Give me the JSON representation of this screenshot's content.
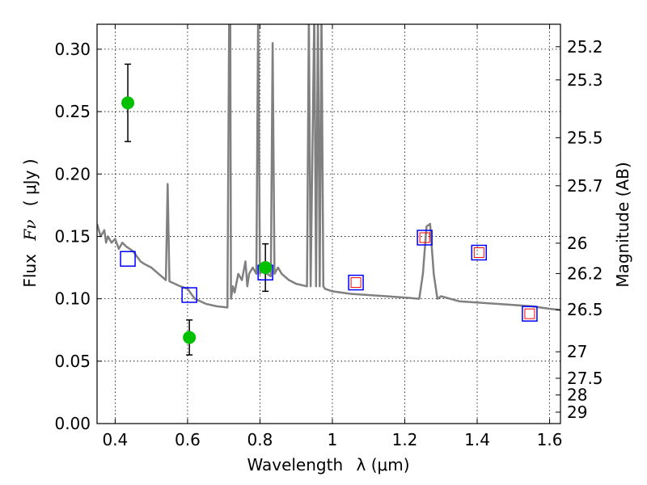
{
  "chart_data": {
    "type": "scatter",
    "x_axis": {
      "label": "Wavelength",
      "label_symbol": "λ (μm)",
      "lim": [
        0.35,
        1.63
      ],
      "ticks": [
        0.4,
        0.6,
        0.8,
        1.0,
        1.2,
        1.4,
        1.6
      ],
      "tick_labels": [
        "0.4",
        "0.6",
        "0.8",
        "1",
        "1.2",
        "1.4",
        "1.6"
      ]
    },
    "y_axis": {
      "label": "Flux",
      "label_symbol": "Fν",
      "label_unit": "( μJy )",
      "lim": [
        0.0,
        0.32
      ],
      "ticks": [
        0.0,
        0.05,
        0.1,
        0.15,
        0.2,
        0.25,
        0.3
      ],
      "tick_labels": [
        "0.00",
        "0.05",
        "0.10",
        "0.15",
        "0.20",
        "0.25",
        "0.30"
      ]
    },
    "y2_axis": {
      "label": "Magnitude (AB)",
      "ticks": [
        25.2,
        25.3,
        25.5,
        25.7,
        26,
        26.2,
        26.5,
        27,
        27.5,
        28,
        29
      ],
      "tick_labels": [
        "25.2",
        "25.3",
        "25.5",
        "25.7",
        "26",
        "26.2",
        "26.5",
        "27",
        "27.5",
        "28",
        "29"
      ]
    },
    "grid": true,
    "series": [
      {
        "kind": "line",
        "color": "#808080",
        "x": [
          0.35,
          0.36,
          0.37,
          0.375,
          0.38,
          0.39,
          0.4,
          0.41,
          0.42,
          0.43,
          0.44,
          0.45,
          0.46,
          0.47,
          0.48,
          0.5,
          0.52,
          0.54,
          0.545,
          0.55,
          0.58,
          0.6,
          0.62,
          0.65,
          0.68,
          0.71,
          0.715,
          0.718,
          0.72,
          0.725,
          0.73,
          0.74,
          0.75,
          0.76,
          0.765,
          0.77,
          0.78,
          0.79,
          0.795,
          0.8,
          0.81,
          0.82,
          0.83,
          0.835,
          0.84,
          0.85,
          0.86,
          0.88,
          0.9,
          0.93,
          0.935,
          0.94,
          0.95,
          0.955,
          0.96,
          0.965,
          0.97,
          0.975,
          0.98,
          1.0,
          1.05,
          1.1,
          1.15,
          1.2,
          1.24,
          1.25,
          1.26,
          1.27,
          1.28,
          1.29,
          1.3,
          1.35,
          1.4,
          1.45,
          1.5,
          1.55,
          1.6,
          1.63
        ],
        "y": [
          0.16,
          0.15,
          0.155,
          0.145,
          0.15,
          0.145,
          0.148,
          0.14,
          0.145,
          0.142,
          0.14,
          0.138,
          0.134,
          0.13,
          0.128,
          0.125,
          0.12,
          0.115,
          0.192,
          0.114,
          0.11,
          0.108,
          0.1,
          0.096,
          0.094,
          0.093,
          0.33,
          0.33,
          0.1,
          0.11,
          0.105,
          0.12,
          0.115,
          0.13,
          0.11,
          0.12,
          0.125,
          0.12,
          0.33,
          0.12,
          0.125,
          0.12,
          0.118,
          0.305,
          0.12,
          0.125,
          0.12,
          0.115,
          0.112,
          0.11,
          0.33,
          0.11,
          0.33,
          0.11,
          0.33,
          0.11,
          0.33,
          0.11,
          0.108,
          0.106,
          0.104,
          0.103,
          0.102,
          0.101,
          0.1,
          0.12,
          0.158,
          0.16,
          0.12,
          0.1,
          0.102,
          0.098,
          0.097,
          0.096,
          0.095,
          0.094,
          0.092,
          0.091
        ]
      },
      {
        "kind": "points_errorbars",
        "color": "#00c000",
        "x": [
          0.435,
          0.605,
          0.815
        ],
        "y": [
          0.257,
          0.069,
          0.125
        ],
        "err": [
          0.031,
          0.014,
          0.019
        ]
      },
      {
        "kind": "squares",
        "color": "#0000ff",
        "x": [
          0.435,
          0.605,
          0.815,
          1.065,
          1.255,
          1.405,
          1.545
        ],
        "y": [
          0.132,
          0.103,
          0.121,
          0.113,
          0.149,
          0.137,
          0.088
        ]
      },
      {
        "kind": "squares_small",
        "color": "#ff0000",
        "x": [
          1.065,
          1.255,
          1.405,
          1.545
        ],
        "y": [
          0.113,
          0.149,
          0.137,
          0.088
        ]
      }
    ]
  }
}
